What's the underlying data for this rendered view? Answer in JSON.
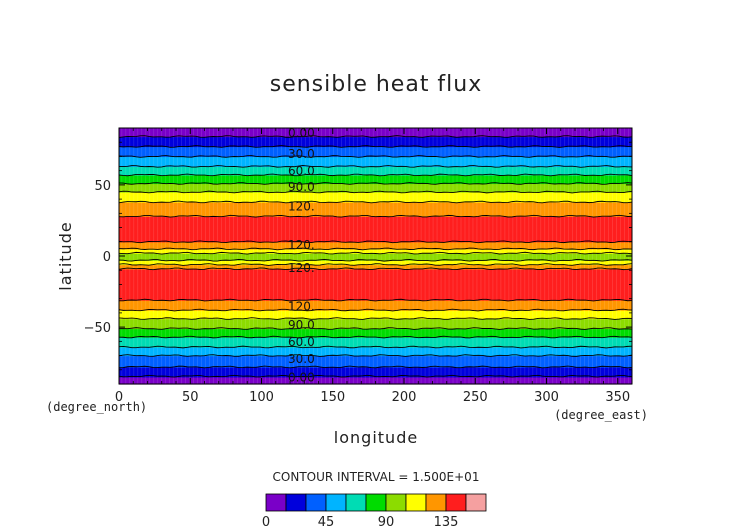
{
  "chart_data": {
    "type": "contour",
    "title": "sensible heat flux",
    "xlabel": "longitude",
    "ylabel": "latitude",
    "x_unit": "(degree_east)",
    "y_unit": "(degree_north)",
    "xlim": [
      0,
      360
    ],
    "ylim": [
      -90,
      90
    ],
    "x_ticks": [
      0,
      50,
      100,
      150,
      200,
      250,
      300,
      350
    ],
    "y_ticks": [
      -50,
      0,
      50
    ],
    "contour_interval_text": "CONTOUR INTERVAL = 1.500E+01",
    "levels": [
      0,
      15,
      30,
      45,
      60,
      75,
      90,
      105,
      120,
      135,
      150
    ],
    "colorbar_tick_values": [
      0,
      45,
      90,
      135
    ],
    "colors": [
      "#7a00c8",
      "#0000dc",
      "#0060ff",
      "#00b4ff",
      "#00dcb4",
      "#00dc00",
      "#8cdc00",
      "#ffff00",
      "#ff9600",
      "#ff1e1e",
      "#f5a0a0"
    ],
    "bands": [
      {
        "lat": [
          -90,
          -85
        ],
        "value": 0
      },
      {
        "lat": [
          -85,
          -78
        ],
        "value": 15
      },
      {
        "lat": [
          -78,
          -70
        ],
        "value": 30
      },
      {
        "lat": [
          -70,
          -64
        ],
        "value": 45
      },
      {
        "lat": [
          -64,
          -57
        ],
        "value": 60
      },
      {
        "lat": [
          -57,
          -51
        ],
        "value": 75
      },
      {
        "lat": [
          -51,
          -44
        ],
        "value": 90
      },
      {
        "lat": [
          -44,
          -38
        ],
        "value": 105
      },
      {
        "lat": [
          -38,
          -31
        ],
        "value": 120
      },
      {
        "lat": [
          -31,
          -9
        ],
        "value": 135
      },
      {
        "lat": [
          -9,
          -6
        ],
        "value": 120
      },
      {
        "lat": [
          -6,
          -3
        ],
        "value": 105
      },
      {
        "lat": [
          -3,
          2
        ],
        "value": 90
      },
      {
        "lat": [
          2,
          5
        ],
        "value": 105
      },
      {
        "lat": [
          5,
          10
        ],
        "value": 120
      },
      {
        "lat": [
          10,
          28
        ],
        "value": 135
      },
      {
        "lat": [
          28,
          38
        ],
        "value": 120
      },
      {
        "lat": [
          38,
          45
        ],
        "value": 105
      },
      {
        "lat": [
          45,
          51
        ],
        "value": 90
      },
      {
        "lat": [
          51,
          57
        ],
        "value": 75
      },
      {
        "lat": [
          57,
          63
        ],
        "value": 60
      },
      {
        "lat": [
          63,
          70
        ],
        "value": 45
      },
      {
        "lat": [
          70,
          77
        ],
        "value": 30
      },
      {
        "lat": [
          77,
          84
        ],
        "value": 15
      },
      {
        "lat": [
          84,
          90
        ],
        "value": 0
      }
    ],
    "contour_lines": [
      -84.5,
      -78,
      -70,
      -64,
      -57,
      -51,
      -44,
      -38,
      -31,
      -9,
      -6,
      -3,
      2,
      5,
      10,
      28,
      38,
      45,
      51,
      57,
      63,
      70,
      77,
      84
    ],
    "contour_labels": [
      {
        "text": "0.00",
        "lat": 87
      },
      {
        "text": "30.0",
        "lat": 72
      },
      {
        "text": "60.0",
        "lat": 60
      },
      {
        "text": "90.0",
        "lat": 49
      },
      {
        "text": "120.",
        "lat": 35
      },
      {
        "text": "120.",
        "lat": 8
      },
      {
        "text": "120.",
        "lat": -8
      },
      {
        "text": "120.",
        "lat": -35
      },
      {
        "text": "90.0",
        "lat": -48
      },
      {
        "text": "60.0",
        "lat": -60
      },
      {
        "text": "30.0",
        "lat": -72
      },
      {
        "text": "0.00",
        "lat": -85
      }
    ],
    "contour_label_lon": 128
  }
}
